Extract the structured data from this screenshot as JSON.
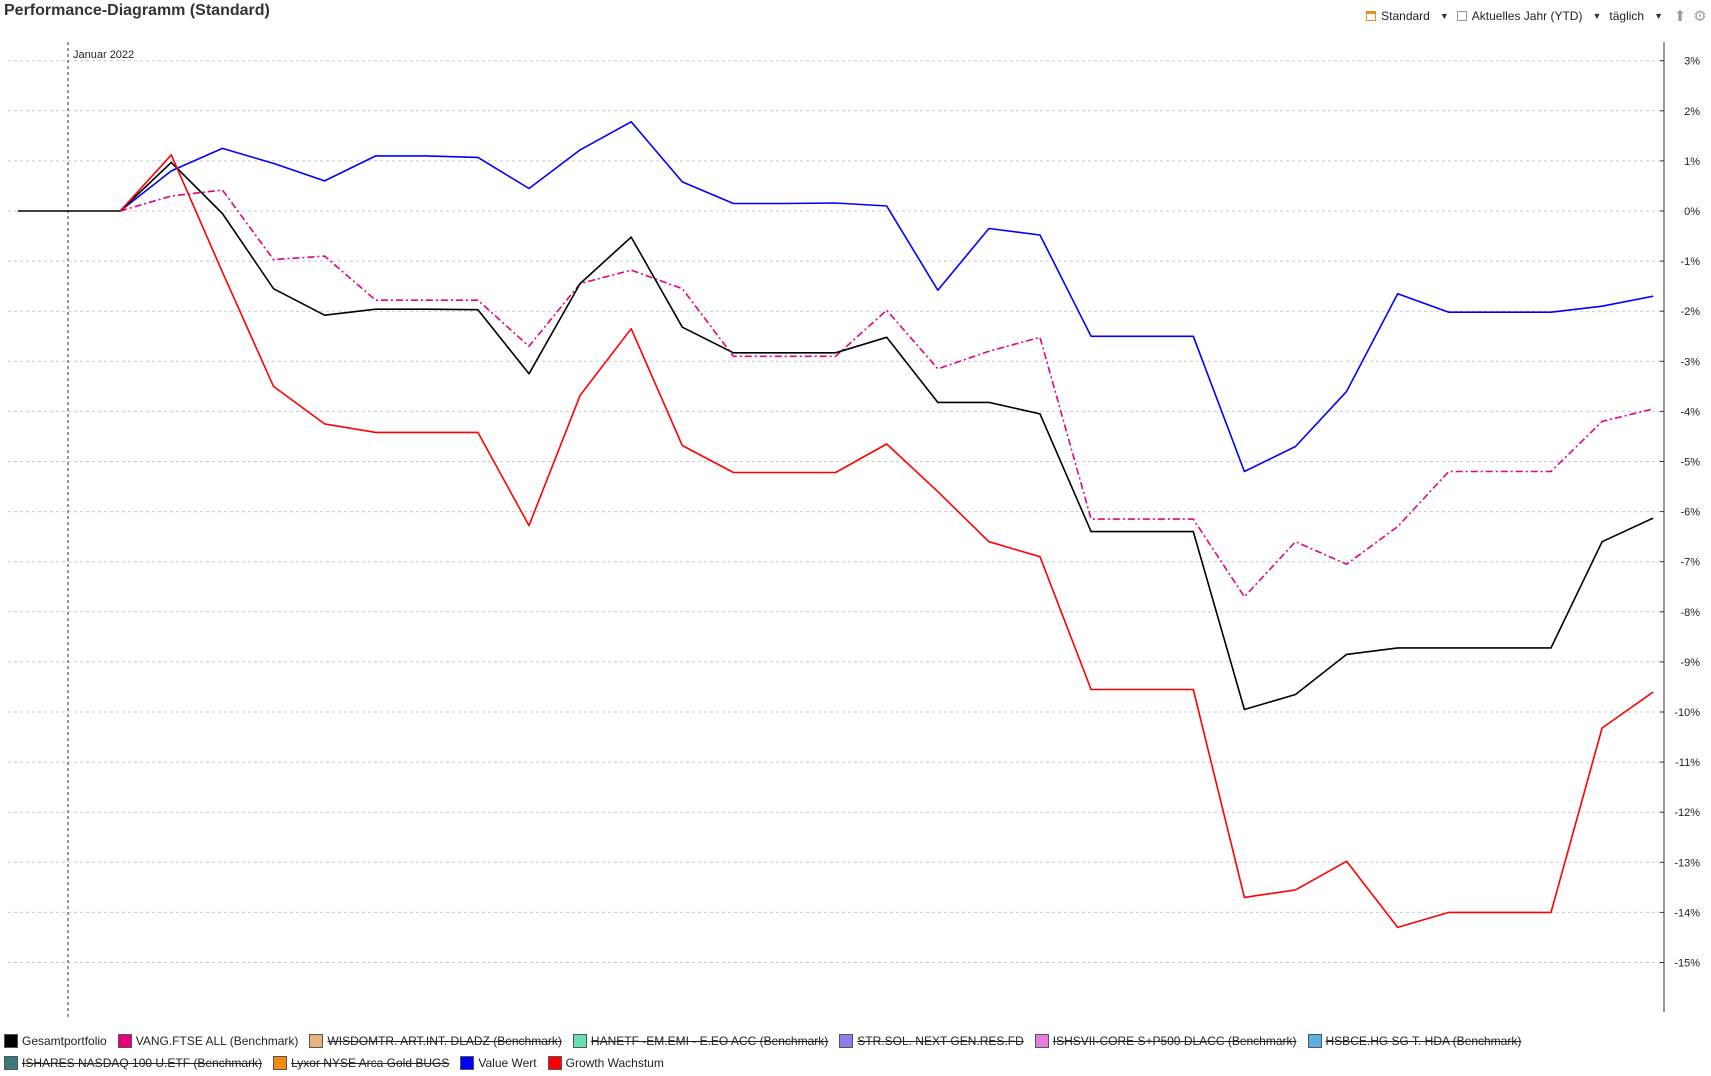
{
  "title": "Performance-Diagramm (Standard)",
  "toolbar": {
    "view": "Standard",
    "period": "Aktuelles Jahr (YTD)",
    "interval": "täglich",
    "export_icon": "export-icon",
    "settings_icon": "gear-icon"
  },
  "chart_data": {
    "type": "line",
    "annotation": "Januar 2022",
    "ytick_labels": [
      "3%",
      "2%",
      "1%",
      "0%",
      "-1%",
      "-2%",
      "-3%",
      "-4%",
      "-5%",
      "-6%",
      "-7%",
      "-8%",
      "-9%",
      "-10%",
      "-11%",
      "-12%",
      "-13%",
      "-14%",
      "-15%"
    ],
    "yticks": [
      3,
      2,
      1,
      0,
      -1,
      -2,
      -3,
      -4,
      -5,
      -6,
      -7,
      -8,
      -9,
      -10,
      -11,
      -12,
      -13,
      -14,
      -15
    ],
    "ylim": [
      -16,
      3.5
    ],
    "grid": true,
    "y_axis_side": "right",
    "x": [
      0,
      1,
      2,
      3,
      4,
      5,
      6,
      7,
      8,
      9,
      10,
      11,
      12,
      13,
      14,
      15,
      16,
      17,
      18,
      19,
      20,
      21,
      22,
      23,
      24,
      25,
      26,
      27,
      28,
      29,
      30,
      31,
      32
    ],
    "series": [
      {
        "name": "Value Wert",
        "color": "#0000ff",
        "dashed": false,
        "values": [
          null,
          null,
          0,
          0.8,
          1.25,
          0.95,
          0.6,
          1.1,
          1.1,
          1.07,
          0.45,
          1.22,
          1.78,
          0.58,
          0.15,
          0.15,
          0.16,
          0.1,
          -1.58,
          -0.35,
          -0.48,
          -2.5,
          -2.5,
          -2.5,
          -5.2,
          -4.7,
          -3.6,
          -1.65,
          -2.02,
          -2.02,
          -2.02,
          -1.9,
          -1.7
        ]
      },
      {
        "name": "VANG.FTSE ALL (Benchmark)",
        "color": "#e6007e",
        "dashed": true,
        "values": [
          null,
          null,
          0,
          0.3,
          0.42,
          -0.97,
          -0.9,
          -1.78,
          -1.78,
          -1.78,
          -2.7,
          -1.45,
          -1.18,
          -1.55,
          -2.9,
          -2.9,
          -2.9,
          -1.98,
          -3.15,
          -2.8,
          -2.52,
          -6.15,
          -6.15,
          -6.15,
          -7.7,
          -6.6,
          -7.05,
          -6.3,
          -5.2,
          -5.2,
          -5.2,
          -4.2,
          -3.95
        ]
      },
      {
        "name": "Gesamtportfolio",
        "color": "#000000",
        "dashed": false,
        "values": [
          0,
          0,
          0,
          0.97,
          -0.05,
          -1.55,
          -2.08,
          -1.96,
          -1.96,
          -1.97,
          -3.25,
          -1.45,
          -0.52,
          -2.32,
          -2.83,
          -2.83,
          -2.83,
          -2.52,
          -3.82,
          -3.82,
          -4.05,
          -6.4,
          -6.4,
          -6.4,
          -9.95,
          -9.65,
          -8.85,
          -8.72,
          -8.72,
          -8.72,
          -8.72,
          -6.6,
          -6.13
        ]
      },
      {
        "name": "Growth Wachstum",
        "color": "#ff0000",
        "dashed": false,
        "values": [
          null,
          null,
          0,
          1.12,
          -1.22,
          -3.5,
          -4.25,
          -4.42,
          -4.42,
          -4.42,
          -6.28,
          -3.68,
          -2.35,
          -4.68,
          -5.22,
          -5.22,
          -5.22,
          -4.65,
          -5.6,
          -6.6,
          -6.9,
          -9.55,
          -9.55,
          -9.55,
          -13.7,
          -13.55,
          -12.98,
          -14.3,
          -14.0,
          -14.0,
          -14.0,
          -10.32,
          -9.6
        ]
      }
    ]
  },
  "legend": {
    "rows": [
      [
        {
          "label": "Gesamtportfolio",
          "color": "#000000",
          "struck": false
        },
        {
          "label": "VANG.FTSE ALL (Benchmark)",
          "color": "#e6007e",
          "struck": false
        },
        {
          "label": "WISDOMTR. ART.INT. DLADZ (Benchmark)",
          "color": "#e9b27a",
          "struck": true
        },
        {
          "label": "HANETF -EM.EMI - E.EO ACC (Benchmark)",
          "color": "#66e0b0",
          "struck": true
        },
        {
          "label": "STR.SOL. NEXT GEN.RES.FD",
          "color": "#8b80e8",
          "struck": true
        },
        {
          "label": "ISHSVII-CORE S+P500 DLACC (Benchmark)",
          "color": "#e57ce0",
          "struck": true
        },
        {
          "label": "HSBCE.HG SG T. HDA (Benchmark)",
          "color": "#5aaee0",
          "struck": true
        }
      ],
      [
        {
          "label": "ISHARES NASDAQ 100 U.ETF (Benchmark)",
          "color": "#3a7a7e",
          "struck": true
        },
        {
          "label": "Lyxor NYSE Arca Gold BUGS",
          "color": "#f08a10",
          "struck": true
        },
        {
          "label": "Value Wert",
          "color": "#0000ff",
          "struck": false
        },
        {
          "label": "Growth Wachstum",
          "color": "#ff0000",
          "struck": false
        }
      ]
    ]
  }
}
